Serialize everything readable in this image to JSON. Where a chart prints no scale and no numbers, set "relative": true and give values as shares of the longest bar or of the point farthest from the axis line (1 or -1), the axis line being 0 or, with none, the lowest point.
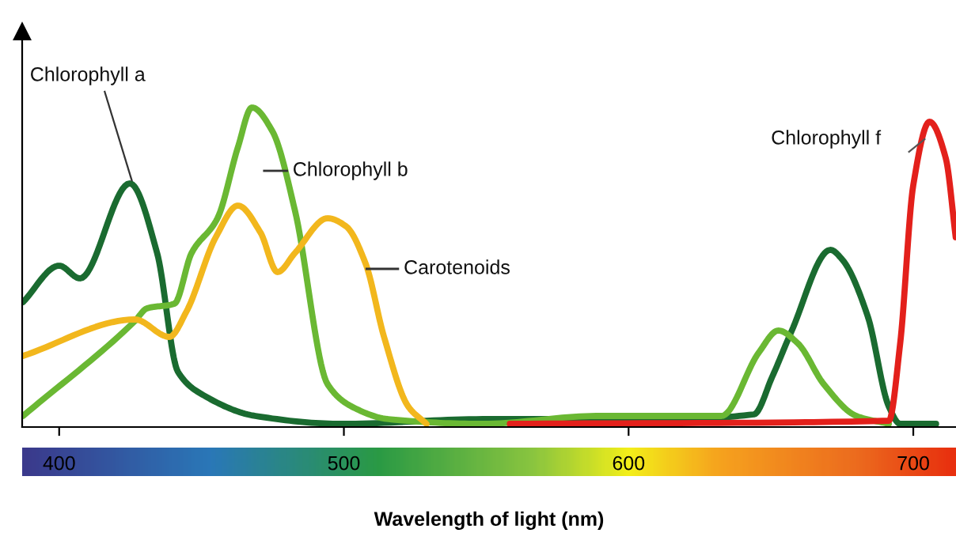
{
  "chart_data": {
    "type": "line",
    "relative": true,
    "xlabel": "Wavelength of light (nm)",
    "xlim": [
      387,
      715
    ],
    "xticks": [
      400,
      500,
      600,
      700
    ],
    "tick_labels": "x",
    "grid": false,
    "legend": false,
    "marker": "none",
    "line_style": "solid",
    "series": [
      {
        "name": "Chlorophyll a",
        "color": "#1a6b30",
        "x": [
          387.3,
          400,
          407.3,
          424.8,
          434.4,
          441.7,
          450.8,
          468.9,
          499.1,
          548.9,
          609.7,
          644,
          650.5,
          657.1,
          670.9,
          675,
          684,
          691.4,
          695.4,
          708
        ],
        "values": [
          0.385,
          0.5,
          0.46,
          0.76,
          0.54,
          0.165,
          0.09,
          0.025,
          0,
          0.015,
          0.015,
          0.03,
          0.15,
          0.29,
          0.55,
          0.52,
          0.34,
          0.055,
          0,
          0
        ]
      },
      {
        "name": "Chlorophyll b",
        "color": "#6ab833",
        "x": [
          387.3,
          426.6,
          430.8,
          440.5,
          446.5,
          455.6,
          462.8,
          467.7,
          474.9,
          482.8,
          494.3,
          502.7,
          515.6,
          548.9,
          588.6,
          632.6,
          645.7,
          652.6,
          659.4,
          668.6,
          680,
          691.4
        ],
        "values": [
          0.025,
          0.325,
          0.365,
          0.38,
          0.54,
          0.65,
          0.875,
          1.0,
          0.925,
          0.675,
          0.125,
          0.055,
          0.015,
          0,
          0.025,
          0.025,
          0.225,
          0.295,
          0.255,
          0.125,
          0.025,
          0
        ]
      },
      {
        "name": "Carotenoids",
        "color": "#f2b71d",
        "x": [
          387.3,
          426.6,
          438.7,
          444.7,
          455,
          462.8,
          470.7,
          476.7,
          482.8,
          494.3,
          500.7,
          507.7,
          514.1,
          522.6,
          529
        ],
        "values": [
          0.215,
          0.33,
          0.275,
          0.355,
          0.59,
          0.69,
          0.605,
          0.48,
          0.54,
          0.65,
          0.625,
          0.505,
          0.275,
          0.055,
          0
        ]
      },
      {
        "name": "Chlorophyll f",
        "color": "#e3201b",
        "x": [
          558.3,
          691.4,
          695.4,
          700,
          705.7,
          711.4,
          714.9
        ],
        "values": [
          0,
          0.01,
          0.255,
          0.755,
          0.955,
          0.84,
          0.59
        ]
      }
    ]
  }
}
